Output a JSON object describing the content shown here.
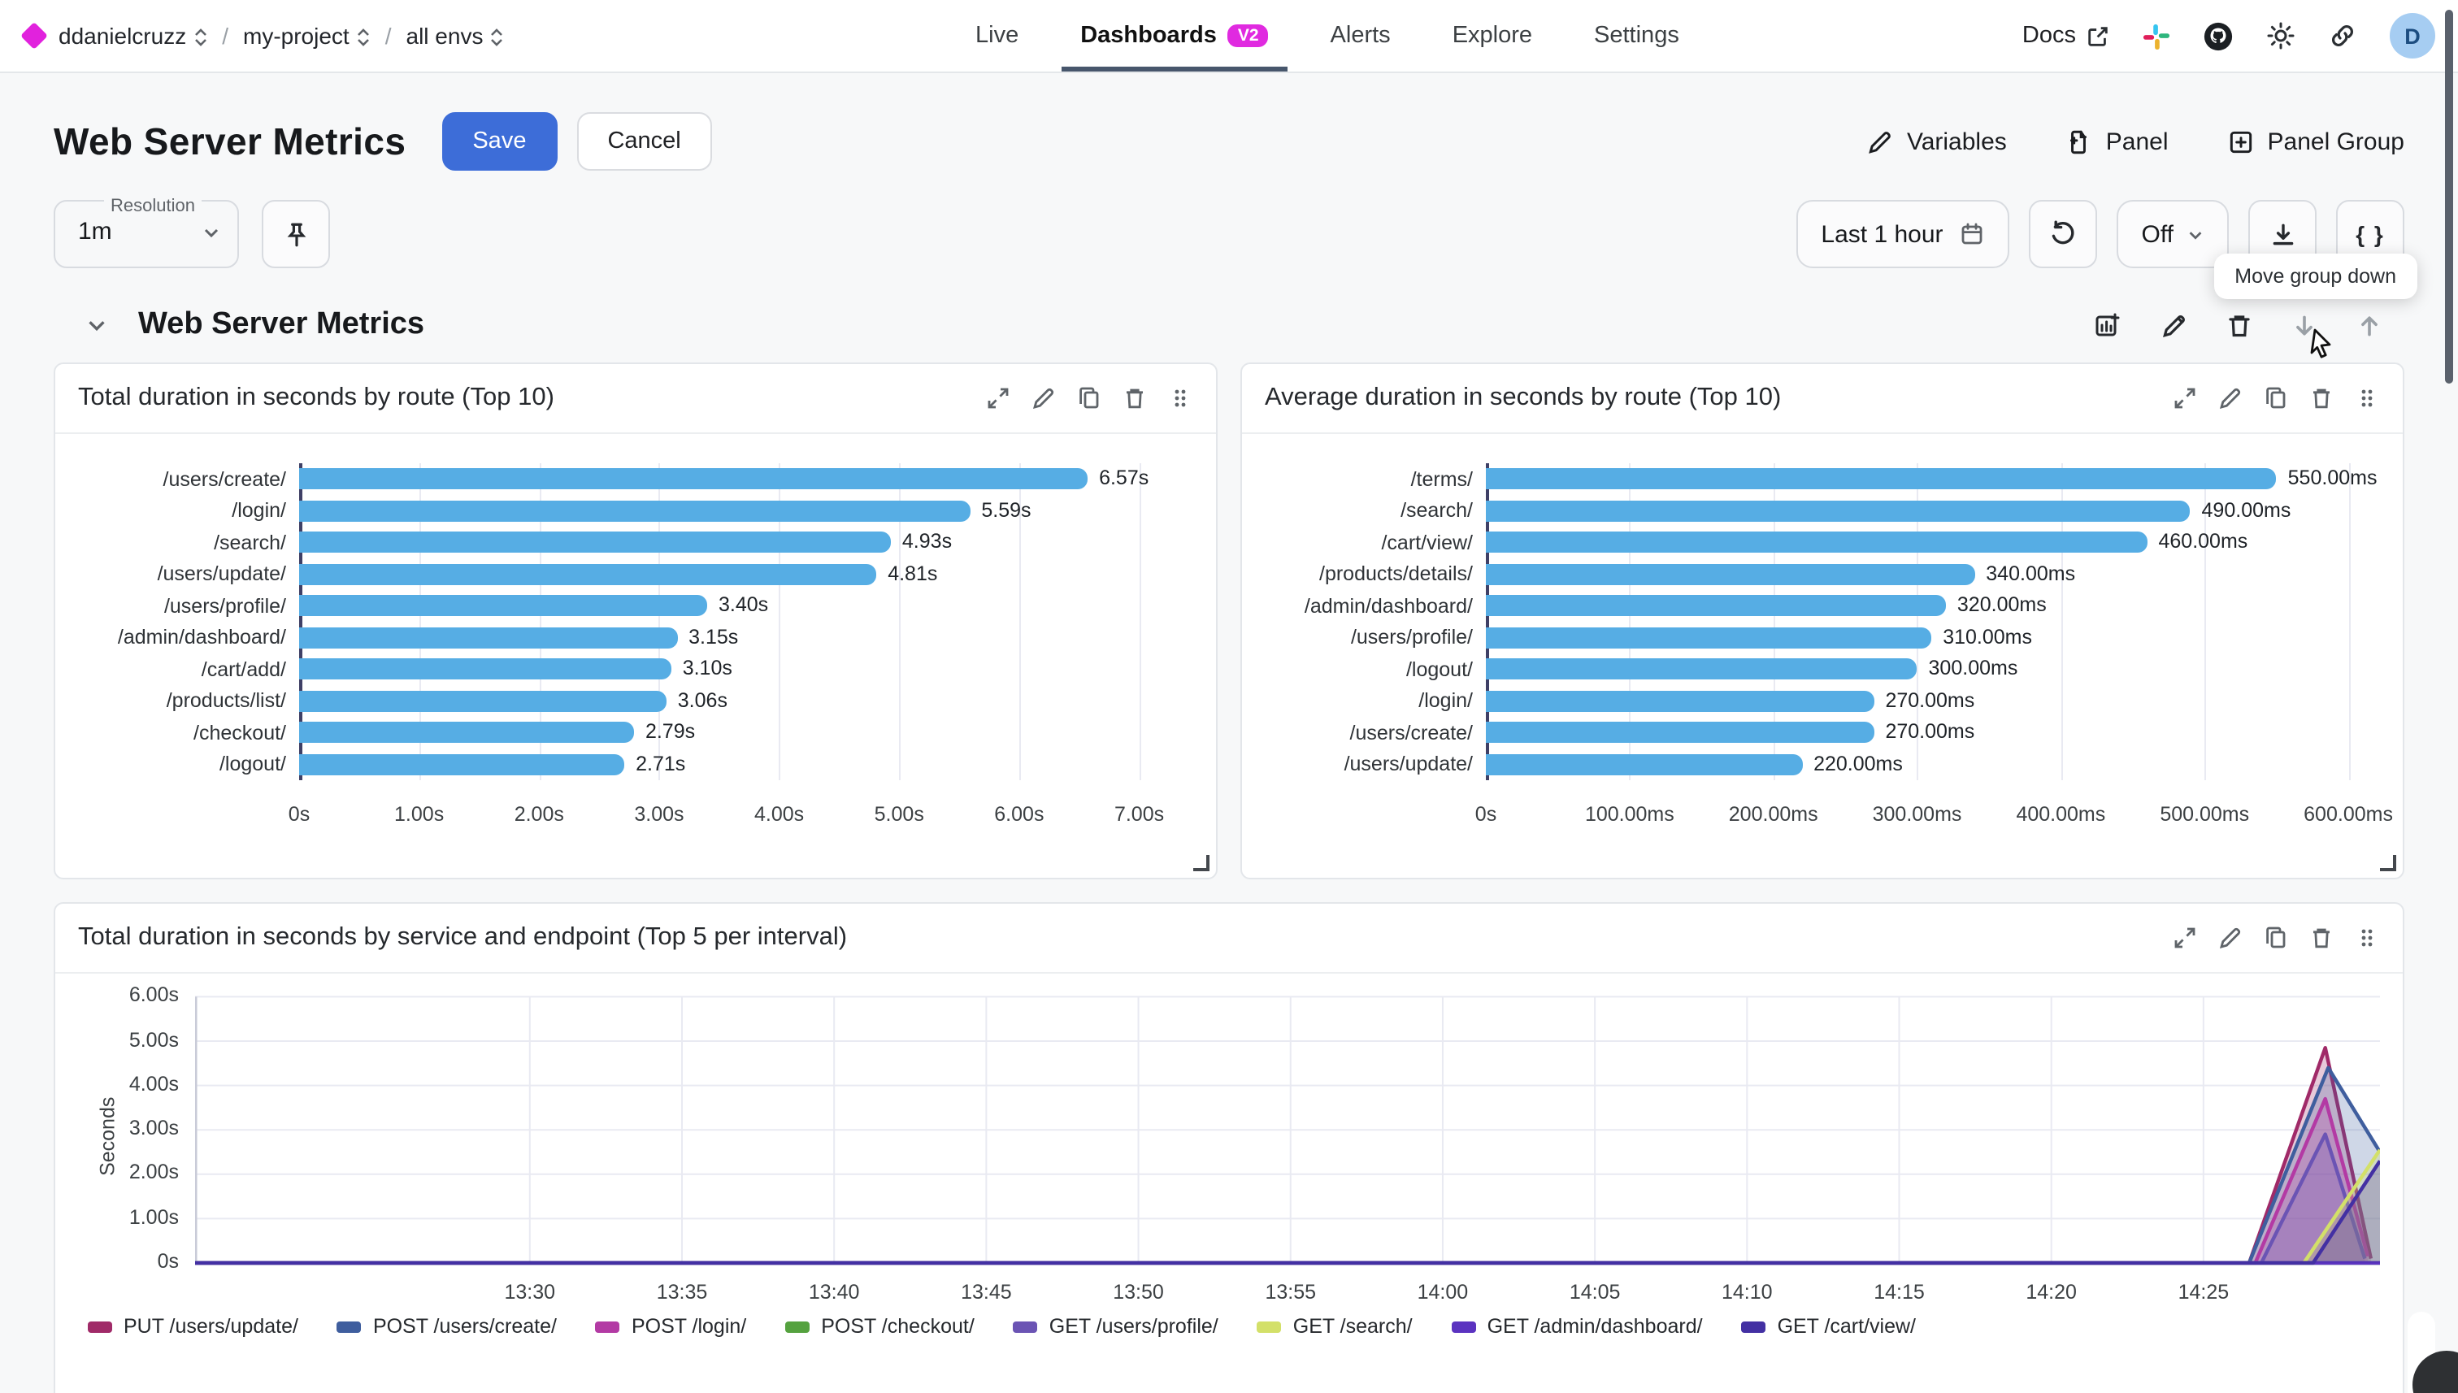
{
  "topbar": {
    "org": "ddanielcruzz",
    "project": "my-project",
    "env": "all envs",
    "nav": [
      {
        "label": "Live",
        "active": false
      },
      {
        "label": "Dashboards",
        "active": true,
        "badge": "V2"
      },
      {
        "label": "Alerts",
        "active": false
      },
      {
        "label": "Explore",
        "active": false
      },
      {
        "label": "Settings",
        "active": false
      }
    ],
    "docs_label": "Docs",
    "avatar_letter": "D"
  },
  "page": {
    "title": "Web Server Metrics",
    "save_label": "Save",
    "cancel_label": "Cancel",
    "actions": {
      "variables": "Variables",
      "panel": "Panel",
      "panel_group": "Panel Group"
    }
  },
  "toolbar": {
    "resolution_label": "Resolution",
    "resolution_value": "1m",
    "time_range": "Last 1 hour",
    "refresh_rate": "Off",
    "code_button": "{ }",
    "tooltip": "Move group down"
  },
  "group": {
    "title": "Web Server Metrics"
  },
  "colors": {
    "accent_magenta": "#e02ae0",
    "save_blue": "#3d6dd8",
    "bar_blue": "#56ade4",
    "nav_underline": "#47566c"
  },
  "chart_data": [
    {
      "type": "bar",
      "orientation": "horizontal",
      "title": "Total duration in seconds by route (Top 10)",
      "categories": [
        "/users/create/",
        "/login/",
        "/search/",
        "/users/update/",
        "/users/profile/",
        "/admin/dashboard/",
        "/cart/add/",
        "/products/list/",
        "/checkout/",
        "/logout/"
      ],
      "values": [
        6.57,
        5.59,
        4.93,
        4.81,
        3.4,
        3.15,
        3.1,
        3.06,
        2.79,
        2.71
      ],
      "value_labels": [
        "6.57s",
        "5.59s",
        "4.93s",
        "4.81s",
        "3.40s",
        "3.15s",
        "3.10s",
        "3.06s",
        "2.79s",
        "2.71s"
      ],
      "xticks": [
        0,
        1,
        2,
        3,
        4,
        5,
        6,
        7
      ],
      "xtick_labels": [
        "0s",
        "1.00s",
        "2.00s",
        "3.00s",
        "4.00s",
        "5.00s",
        "6.00s",
        "7.00s"
      ],
      "axis_max": 7.45,
      "bar_color": "#56ade4",
      "grid": true
    },
    {
      "type": "bar",
      "orientation": "horizontal",
      "title": "Average duration in seconds by route (Top 10)",
      "categories": [
        "/terms/",
        "/search/",
        "/cart/view/",
        "/products/details/",
        "/admin/dashboard/",
        "/users/profile/",
        "/logout/",
        "/login/",
        "/users/create/",
        "/users/update/"
      ],
      "values": [
        550,
        490,
        460,
        340,
        320,
        310,
        300,
        270,
        270,
        220
      ],
      "value_labels": [
        "550.00ms",
        "490.00ms",
        "460.00ms",
        "340.00ms",
        "320.00ms",
        "310.00ms",
        "300.00ms",
        "270.00ms",
        "270.00ms",
        "220.00ms"
      ],
      "xticks": [
        0,
        100,
        200,
        300,
        400,
        500,
        600
      ],
      "xtick_labels": [
        "0s",
        "100.00ms",
        "200.00ms",
        "300.00ms",
        "400.00ms",
        "500.00ms",
        "600.00ms"
      ],
      "axis_max": 622,
      "bar_color": "#56ade4",
      "grid": true
    },
    {
      "type": "area",
      "title": "Total duration in seconds by service and endpoint (Top 5 per interval)",
      "ylabel": "Seconds",
      "yticks": [
        0,
        1,
        2,
        3,
        4,
        5,
        6
      ],
      "ytick_labels": [
        "0s",
        "1.00s",
        "2.00s",
        "3.00s",
        "4.00s",
        "5.00s",
        "6.00s"
      ],
      "ylim": [
        0,
        6
      ],
      "xtick_labels": [
        "13:30",
        "13:35",
        "13:40",
        "13:45",
        "13:50",
        "13:55",
        "14:00",
        "14:05",
        "14:10",
        "14:15",
        "14:20",
        "14:25"
      ],
      "xticks_min": [
        0,
        5,
        10,
        15,
        20,
        25,
        30,
        35,
        40,
        45,
        50,
        55
      ],
      "x_domain_min": [
        -11,
        60.8
      ],
      "grid": true,
      "legend_position": "bottom",
      "series": [
        {
          "name": "PUT /users/update/",
          "color": "#a02a68",
          "points": [
            [
              -11,
              0
            ],
            [
              56.5,
              0
            ],
            [
              59,
              4.85
            ],
            [
              60.5,
              0.1
            ]
          ]
        },
        {
          "name": "POST /users/create/",
          "color": "#3f5e9e",
          "points": [
            [
              -11,
              0
            ],
            [
              56.5,
              0
            ],
            [
              59.1,
              4.4
            ],
            [
              60.8,
              2.5
            ]
          ]
        },
        {
          "name": "POST /login/",
          "color": "#b33aa4",
          "points": [
            [
              -11,
              0
            ],
            [
              56.7,
              0
            ],
            [
              59,
              3.7
            ],
            [
              60.4,
              0.15
            ]
          ]
        },
        {
          "name": "POST /checkout/",
          "color": "#55a23f",
          "points": [
            [
              -11,
              0
            ],
            [
              60.8,
              0
            ]
          ]
        },
        {
          "name": "GET /users/profile/",
          "color": "#6b54b4",
          "points": [
            [
              -11,
              0
            ],
            [
              56.9,
              0
            ],
            [
              59,
              2.9
            ],
            [
              60.3,
              0.1
            ]
          ]
        },
        {
          "name": "GET /search/",
          "color": "#d3e069",
          "points": [
            [
              -11,
              0
            ],
            [
              58.3,
              0
            ],
            [
              60.8,
              2.55
            ]
          ]
        },
        {
          "name": "GET /admin/dashboard/",
          "color": "#5b33c0",
          "points": [
            [
              -11,
              0
            ],
            [
              60.8,
              0
            ]
          ]
        },
        {
          "name": "GET /cart/view/",
          "color": "#4330a3",
          "points": [
            [
              -11,
              0
            ],
            [
              58.6,
              0
            ],
            [
              60.8,
              2.3
            ]
          ]
        }
      ]
    }
  ]
}
